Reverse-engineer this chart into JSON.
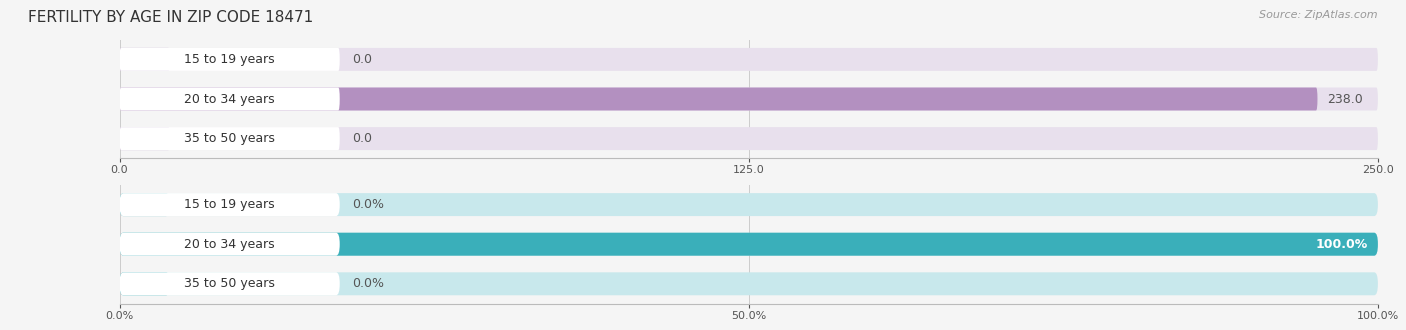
{
  "title": "FERTILITY BY AGE IN ZIP CODE 18471",
  "source": "Source: ZipAtlas.com",
  "categories": [
    "15 to 19 years",
    "20 to 34 years",
    "35 to 50 years"
  ],
  "abs_values": [
    0.0,
    238.0,
    0.0
  ],
  "pct_values": [
    0.0,
    100.0,
    0.0
  ],
  "abs_xlim": [
    0,
    250.0
  ],
  "pct_xlim": [
    0,
    100.0
  ],
  "abs_xticks": [
    0.0,
    125.0,
    250.0
  ],
  "pct_xticks": [
    0.0,
    50.0,
    100.0
  ],
  "bar_color_abs": "#b390c0",
  "bar_color_pct": "#3aafba",
  "bar_bg_color_abs": "#e8e0ed",
  "bar_bg_color_pct": "#c8e8ec",
  "bar_height": 0.58,
  "background_color": "#f5f5f5",
  "title_fontsize": 11,
  "source_fontsize": 8,
  "label_fontsize": 9,
  "tick_fontsize": 8,
  "value_label_color": "#ffffff",
  "value_label_color_zero": "#555555",
  "label_color": "#333333"
}
